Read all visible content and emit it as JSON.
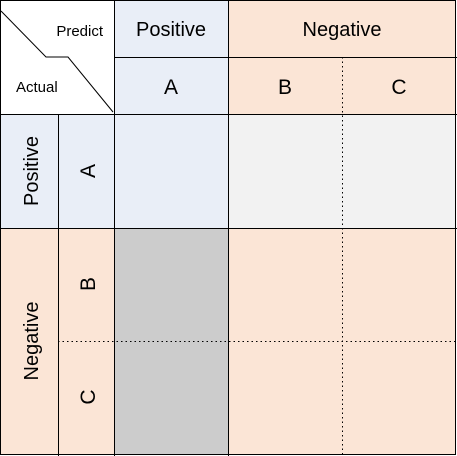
{
  "header": {
    "predict_label": "Predict",
    "actual_label": "Actual",
    "columns": {
      "group_positive": "Positive",
      "group_negative": "Negative",
      "class_a": "A",
      "class_b": "B",
      "class_c": "C"
    }
  },
  "rows": {
    "group_positive": "Positive",
    "group_negative": "Negative",
    "class_a": "A",
    "class_b": "B",
    "class_c": "C"
  },
  "colors": {
    "positive_header": "#e9eef7",
    "negative_header": "#fbe5d6",
    "true_positive_cell": "#e9eef7",
    "false_negative_cell": "#f2f2f2",
    "false_positive_cell": "#cccccc",
    "true_negative_cell": "#fbe5d6",
    "grid_line": "#000000"
  }
}
